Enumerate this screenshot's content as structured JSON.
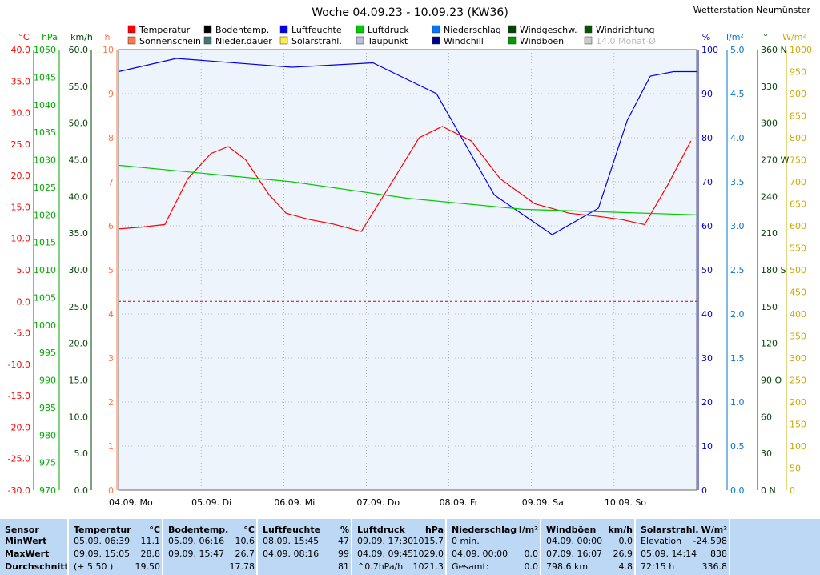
{
  "title": "Woche 04.09.23 - 10.09.23 (KW36)",
  "station": "Wetterstation Neumünster",
  "colors": {
    "temp": "#ff0000",
    "boden": "#000000",
    "feuchte": "#0000ee",
    "druck": "#00cc00",
    "niederschlag": "#0077ff",
    "windgeschw": "#004400",
    "windrichtung": "#005500",
    "sonne": "#ff7744",
    "niederdauer": "#447777",
    "solar": "#ffee44",
    "taupunkt": "#bbbbdd",
    "windchill": "#000088",
    "windboeen": "#009900",
    "zero": "#cc0000",
    "grid": "#888888",
    "plot": "#eef4fc",
    "table": "#bcd8f4"
  },
  "legend": [
    {
      "label": "Temperatur",
      "color": "#ff0000"
    },
    {
      "label": "Sonnenschein",
      "color": "#ff7744"
    },
    {
      "label": "Bodentemp.",
      "color": "#000000"
    },
    {
      "label": "Nieder.dauer",
      "color": "#447777"
    },
    {
      "label": "Luftfeuchte",
      "color": "#0000ee"
    },
    {
      "label": "Solarstrahl.",
      "color": "#ffee44"
    },
    {
      "label": "Luftdruck",
      "color": "#00cc00"
    },
    {
      "label": "Taupunkt",
      "color": "#bbbbdd"
    },
    {
      "label": "Niederschlag",
      "color": "#0077ff"
    },
    {
      "label": "Windchill",
      "color": "#000088"
    },
    {
      "label": "Windgeschw.",
      "color": "#004400"
    },
    {
      "label": "Windböen",
      "color": "#009900"
    },
    {
      "label": "Windrichtung",
      "color": "#005500"
    },
    {
      "label": "14.0 Monat-Ø",
      "color": "#cccccc"
    }
  ],
  "chart_data": {
    "type": "line",
    "title": "Woche 04.09.23 - 10.09.23 (KW36)",
    "x_labels": [
      "04.09.  Mo",
      "05.09.  Di",
      "06.09.  Mi",
      "07.09.  Do",
      "08.09.  Fr",
      "09.09.  Sa",
      "10.09.  So"
    ],
    "axes": {
      "temp": {
        "unit": "°C",
        "min": -30,
        "max": 40,
        "ticks": [
          "40.0",
          "35.0",
          "30.0",
          "25.0",
          "20.0",
          "15.0",
          "10.0",
          "5.0",
          "0.0",
          "-5.0",
          "-10.0",
          "-15.0",
          "-20.0",
          "-25.0",
          "-30.0"
        ]
      },
      "druck": {
        "unit": "hPa",
        "min": 970,
        "max": 1050,
        "ticks": [
          "1050",
          "1045",
          "1040",
          "1035",
          "1030",
          "1025",
          "1020",
          "1015",
          "1010",
          "1005",
          "1000",
          "995",
          "990",
          "985",
          "980",
          "975",
          "970"
        ]
      },
      "wind": {
        "unit": "km/h",
        "min": 0,
        "max": 60,
        "ticks": [
          "60.0",
          "55.0",
          "50.0",
          "45.0",
          "40.0",
          "35.0",
          "30.0",
          "25.0",
          "20.0",
          "15.0",
          "10.0",
          "5.0",
          "0.0"
        ]
      },
      "sonne": {
        "unit": "h",
        "min": 0,
        "max": 10,
        "ticks": [
          "10",
          "9",
          "8",
          "7",
          "6",
          "5",
          "4",
          "3",
          "2",
          "1",
          "0"
        ]
      },
      "feuchte": {
        "unit": "%",
        "min": 0,
        "max": 100,
        "ticks": [
          "100",
          "90",
          "80",
          "70",
          "60",
          "50",
          "40",
          "30",
          "20",
          "10",
          "0"
        ]
      },
      "niederschlag": {
        "unit": "l/m²",
        "min": 0,
        "max": 5,
        "ticks": [
          "5.0",
          "4.5",
          "4.0",
          "3.5",
          "3.0",
          "2.5",
          "2.0",
          "1.5",
          "1.0",
          "0.5",
          "0.0"
        ]
      },
      "windrichtung": {
        "unit": "°",
        "min": 0,
        "max": 360,
        "ticks": [
          "360 N",
          "330",
          "300",
          "270 W",
          "240",
          "210",
          "180 S",
          "150",
          "120",
          "90 O",
          "60",
          "30",
          "0 N"
        ]
      },
      "solar": {
        "unit": "W/m²",
        "min": 0,
        "max": 1000,
        "ticks": [
          "1000",
          "950",
          "900",
          "850",
          "800",
          "750",
          "700",
          "650",
          "600",
          "550",
          "500",
          "450",
          "400",
          "350",
          "300",
          "250",
          "200",
          "150",
          "100",
          "50",
          "0"
        ]
      }
    },
    "series": [
      {
        "name": "Temperatur",
        "axis": "temp",
        "x": [
          0,
          0.04,
          0.08,
          0.12,
          0.16,
          0.19,
          0.22,
          0.26,
          0.29,
          0.33,
          0.37,
          0.42,
          0.47,
          0.52,
          0.56,
          0.61,
          0.66,
          0.72,
          0.78,
          0.83,
          0.87,
          0.91,
          0.95,
          0.99
        ],
        "y": [
          11.5,
          11.8,
          12.2,
          19.5,
          23.5,
          24.6,
          22.5,
          17.0,
          14.0,
          13.0,
          12.3,
          11.1,
          18.5,
          26.0,
          27.8,
          25.5,
          19.5,
          15.5,
          14.0,
          13.5,
          13.0,
          12.2,
          18.5,
          25.5
        ]
      },
      {
        "name": "Luftfeuchte",
        "axis": "feuchte",
        "x": [
          0,
          0.1,
          0.3,
          0.44,
          0.55,
          0.65,
          0.75,
          0.83,
          0.88,
          0.92,
          0.96,
          1.0
        ],
        "y": [
          95,
          98,
          96,
          97,
          90,
          67,
          58,
          64,
          84,
          94,
          95,
          95
        ]
      },
      {
        "name": "Luftdruck",
        "axis": "druck",
        "x": [
          0,
          0.3,
          0.5,
          0.7,
          1.0
        ],
        "y": [
          1029,
          1026,
          1023,
          1021,
          1020
        ]
      }
    ]
  },
  "table": {
    "headers": [
      {
        "name": "Sensor",
        "unit": ""
      },
      {
        "name": "Temperatur",
        "unit": "°C"
      },
      {
        "name": "Bodentemp.",
        "unit": "°C"
      },
      {
        "name": "Luftfeuchte",
        "unit": "%"
      },
      {
        "name": "Luftdruck",
        "unit": "hPa"
      },
      {
        "name": "Niederschlag",
        "unit": "l/m²"
      },
      {
        "name": "Windböen",
        "unit": "km/h"
      },
      {
        "name": "Solarstrahl.",
        "unit": "W/m²"
      }
    ],
    "rows": [
      {
        "label": "MinWert",
        "cells": [
          {
            "when": "05.09.  06:39",
            "val": "11.1"
          },
          {
            "when": "05.09.  06:16",
            "val": "10.6"
          },
          {
            "when": "08.09.  15:45",
            "val": "47"
          },
          {
            "when": "09.09.  17:30",
            "val": "1015.7"
          },
          {
            "when": "0 min.",
            "val": ""
          },
          {
            "when": "04.09.  00:00",
            "val": "0.0"
          },
          {
            "when": "Elevation",
            "val": "-24.598"
          }
        ]
      },
      {
        "label": "MaxWert",
        "cells": [
          {
            "when": "09.09.  15:05",
            "val": "28.8"
          },
          {
            "when": "09.09.  15:47",
            "val": "26.7"
          },
          {
            "when": "04.09.  08:16",
            "val": "99"
          },
          {
            "when": "04.09.  09:45",
            "val": "1029.0"
          },
          {
            "when": "04.09.  00:00",
            "val": "0.0"
          },
          {
            "when": "07.09.  16:07",
            "val": "26.9"
          },
          {
            "when": "05.09.  14:14",
            "val": "838"
          }
        ]
      },
      {
        "label": "Durchschnitt",
        "cells": [
          {
            "when": "(+ 5.50 )",
            "val": "19.50"
          },
          {
            "when": "",
            "val": "17.78"
          },
          {
            "when": "",
            "val": "81"
          },
          {
            "when": "^0.7hPa/h",
            "val": "1021.3"
          },
          {
            "when": "Gesamt:",
            "val": "0.0"
          },
          {
            "when": "798.6 km",
            "val": "4.8"
          },
          {
            "when": "72:15 h",
            "val": "336.8"
          }
        ]
      }
    ]
  }
}
